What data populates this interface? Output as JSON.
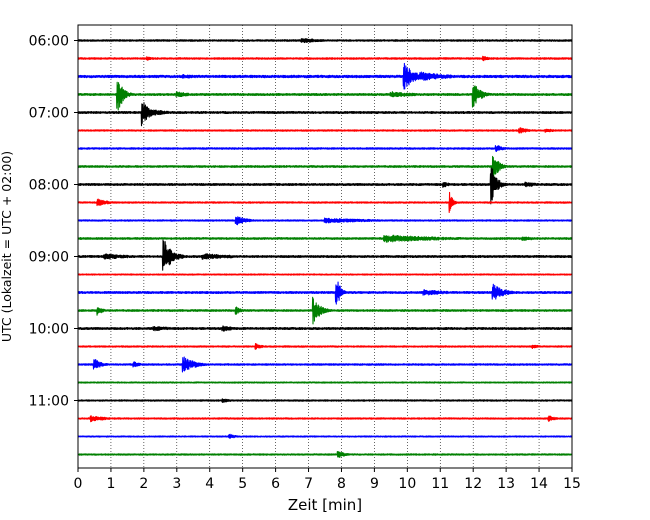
{
  "chart_data": {
    "type": "line",
    "subtype": "helicorder",
    "title": "",
    "xlabel": "Zeit  [min]",
    "ylabel": "UTC (Lokalzeit = UTC + 02:00)",
    "xlim": [
      0,
      15
    ],
    "x_ticks": [
      "0",
      "1",
      "2",
      "3",
      "4",
      "5",
      "6",
      "7",
      "8",
      "9",
      "10",
      "11",
      "12",
      "13",
      "14",
      "15"
    ],
    "grid": "vertical dotted at each minute",
    "trace_interval_min": 15,
    "start_time": "06:00",
    "y_tick_labels": [
      {
        "label": "06:00",
        "trace_index": 0
      },
      {
        "label": "07:00",
        "trace_index": 4
      },
      {
        "label": "08:00",
        "trace_index": 8
      },
      {
        "label": "09:00",
        "trace_index": 12
      },
      {
        "label": "10:00",
        "trace_index": 16
      },
      {
        "label": "11:00",
        "trace_index": 20
      }
    ],
    "colors": [
      "#000000",
      "#ff0000",
      "#0000ff",
      "#008000"
    ],
    "traces": [
      {
        "start": "06:00",
        "noise": 0.8,
        "events": [
          {
            "t": 6.8,
            "amp": 2.5,
            "dur": 0.6
          }
        ]
      },
      {
        "start": "06:15",
        "noise": 0.8,
        "events": [
          {
            "t": 2.1,
            "amp": 2,
            "dur": 0.2
          },
          {
            "t": 12.3,
            "amp": 2.5,
            "dur": 0.2
          }
        ]
      },
      {
        "start": "06:30",
        "noise": 1.2,
        "events": [
          {
            "t": 9.9,
            "amp": 14,
            "dur": 0.3
          },
          {
            "t": 10.4,
            "amp": 5,
            "dur": 0.8
          },
          {
            "t": 3.2,
            "amp": 2,
            "dur": 0.6
          }
        ]
      },
      {
        "start": "06:45",
        "noise": 1.0,
        "events": [
          {
            "t": 1.2,
            "amp": 22,
            "dur": 0.15
          },
          {
            "t": 3.0,
            "amp": 3,
            "dur": 0.4
          },
          {
            "t": 9.5,
            "amp": 3,
            "dur": 0.8
          },
          {
            "t": 12.0,
            "amp": 14,
            "dur": 0.2
          }
        ]
      },
      {
        "start": "07:00",
        "noise": 1.0,
        "events": [
          {
            "t": 1.95,
            "amp": 14,
            "dur": 0.2
          },
          {
            "t": 2.3,
            "amp": 3,
            "dur": 0.5
          }
        ]
      },
      {
        "start": "07:15",
        "noise": 0.7,
        "events": [
          {
            "t": 13.4,
            "amp": 3,
            "dur": 0.3
          },
          {
            "t": 14.2,
            "amp": 2,
            "dur": 0.3
          }
        ]
      },
      {
        "start": "07:30",
        "noise": 0.8,
        "events": [
          {
            "t": 12.7,
            "amp": 4,
            "dur": 0.2
          }
        ]
      },
      {
        "start": "07:45",
        "noise": 0.9,
        "events": [
          {
            "t": 12.6,
            "amp": 16,
            "dur": 0.15
          }
        ]
      },
      {
        "start": "08:00",
        "noise": 1.0,
        "events": [
          {
            "t": 11.1,
            "amp": 3,
            "dur": 0.2
          },
          {
            "t": 12.55,
            "amp": 22,
            "dur": 0.15
          },
          {
            "t": 13.6,
            "amp": 3,
            "dur": 0.3
          }
        ]
      },
      {
        "start": "08:15",
        "noise": 0.7,
        "events": [
          {
            "t": 0.6,
            "amp": 4,
            "dur": 0.3
          },
          {
            "t": 11.3,
            "amp": 12,
            "dur": 0.08
          }
        ]
      },
      {
        "start": "08:30",
        "noise": 0.7,
        "events": [
          {
            "t": 4.8,
            "amp": 5,
            "dur": 0.3
          },
          {
            "t": 7.5,
            "amp": 2.5,
            "dur": 1.5
          }
        ]
      },
      {
        "start": "08:45",
        "noise": 0.9,
        "events": [
          {
            "t": 9.3,
            "amp": 4,
            "dur": 1.6
          },
          {
            "t": 13.5,
            "amp": 2,
            "dur": 0.5
          }
        ]
      },
      {
        "start": "09:00",
        "noise": 1.0,
        "events": [
          {
            "t": 0.8,
            "amp": 3,
            "dur": 0.8
          },
          {
            "t": 2.6,
            "amp": 18,
            "dur": 0.25
          },
          {
            "t": 3.8,
            "amp": 3,
            "dur": 1.0
          }
        ]
      },
      {
        "start": "09:15",
        "noise": 0.6,
        "events": []
      },
      {
        "start": "09:30",
        "noise": 1.0,
        "events": [
          {
            "t": 7.85,
            "amp": 16,
            "dur": 0.12
          },
          {
            "t": 10.5,
            "amp": 3,
            "dur": 0.8
          },
          {
            "t": 12.6,
            "amp": 9,
            "dur": 0.3
          }
        ]
      },
      {
        "start": "09:45",
        "noise": 0.9,
        "events": [
          {
            "t": 0.6,
            "amp": 5,
            "dur": 0.15
          },
          {
            "t": 7.15,
            "amp": 14,
            "dur": 0.2
          },
          {
            "t": 4.8,
            "amp": 4,
            "dur": 0.15
          }
        ]
      },
      {
        "start": "10:00",
        "noise": 1.0,
        "events": [
          {
            "t": 2.3,
            "amp": 2.5,
            "dur": 0.6
          },
          {
            "t": 4.4,
            "amp": 3,
            "dur": 0.4
          }
        ]
      },
      {
        "start": "10:15",
        "noise": 0.7,
        "events": [
          {
            "t": 5.4,
            "amp": 3,
            "dur": 0.2
          },
          {
            "t": 13.8,
            "amp": 2,
            "dur": 0.3
          }
        ]
      },
      {
        "start": "10:30",
        "noise": 0.8,
        "events": [
          {
            "t": 0.5,
            "amp": 6,
            "dur": 0.2
          },
          {
            "t": 3.2,
            "amp": 8,
            "dur": 0.35
          },
          {
            "t": 1.7,
            "amp": 3,
            "dur": 0.2
          }
        ]
      },
      {
        "start": "10:45",
        "noise": 0.6,
        "events": []
      },
      {
        "start": "11:00",
        "noise": 0.7,
        "events": [
          {
            "t": 4.4,
            "amp": 2,
            "dur": 0.3
          }
        ]
      },
      {
        "start": "11:15",
        "noise": 0.7,
        "events": [
          {
            "t": 0.4,
            "amp": 3.5,
            "dur": 0.4
          },
          {
            "t": 14.3,
            "amp": 3,
            "dur": 0.2
          }
        ]
      },
      {
        "start": "11:30",
        "noise": 0.6,
        "events": [
          {
            "t": 4.6,
            "amp": 2.5,
            "dur": 0.2
          }
        ]
      },
      {
        "start": "11:45",
        "noise": 0.7,
        "events": [
          {
            "t": 7.9,
            "amp": 4,
            "dur": 0.2
          }
        ]
      }
    ]
  }
}
